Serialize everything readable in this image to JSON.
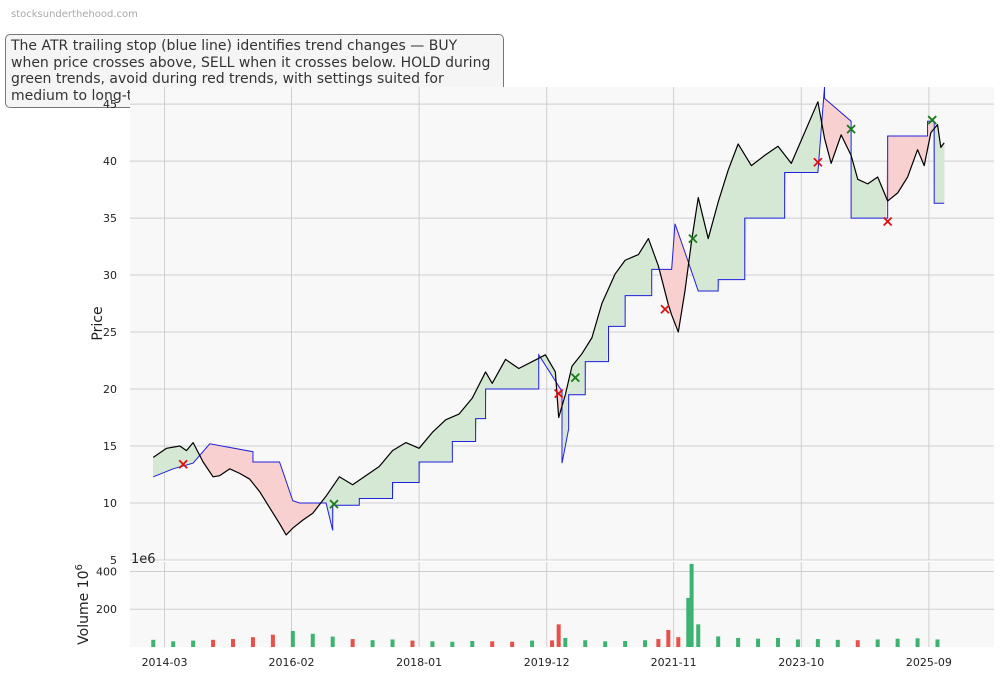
{
  "watermark": "stocksunderthehood.com",
  "note": "The ATR trailing stop (blue line) identifies trend changes — BUY when price crosses above, SELL when it crosses below. HOLD during green trends, avoid during red trends, with settings suited for medium to long-term investors.",
  "colors": {
    "price": "#000000",
    "stop": "#1f1fe0",
    "bull_fill": "#d5e8d4",
    "bear_fill": "#f8d0d0",
    "buy": "#1a7a1a",
    "sell": "#dd1111",
    "vol_up": "#3cb371",
    "vol_down": "#e8504a",
    "panel_bg": "#f8f8f8",
    "grid": "#cfcfcf"
  },
  "chart_data": [
    {
      "type": "line",
      "panel": "price",
      "ylabel": "Price",
      "ylim": [
        5,
        46.5
      ],
      "yticks": [
        5,
        10,
        15,
        20,
        25,
        30,
        35,
        40,
        45
      ],
      "xlim": [
        2013.65,
        2026.65
      ],
      "xticks": [
        {
          "label": "2014-03",
          "x": 2014.17
        },
        {
          "label": "2016-02",
          "x": 2016.08
        },
        {
          "label": "2018-01",
          "x": 2018.0
        },
        {
          "label": "2019-12",
          "x": 2019.92
        },
        {
          "label": "2021-11",
          "x": 2021.83
        },
        {
          "label": "2023-10",
          "x": 2023.75
        },
        {
          "label": "2025-09",
          "x": 2025.67
        }
      ],
      "grid": true,
      "series": [
        {
          "id": "price",
          "x": [
            2014.0,
            2014.2,
            2014.4,
            2014.5,
            2014.6,
            2014.75,
            2014.9,
            2015.0,
            2015.15,
            2015.3,
            2015.45,
            2015.6,
            2015.75,
            2015.9,
            2016.0,
            2016.1,
            2016.25,
            2016.4,
            2016.6,
            2016.8,
            2017.0,
            2017.2,
            2017.4,
            2017.6,
            2017.8,
            2018.0,
            2018.2,
            2018.4,
            2018.6,
            2018.8,
            2019.0,
            2019.1,
            2019.3,
            2019.5,
            2019.7,
            2019.9,
            2020.05,
            2020.1,
            2020.2,
            2020.3,
            2020.45,
            2020.6,
            2020.75,
            2020.95,
            2021.1,
            2021.3,
            2021.45,
            2021.6,
            2021.75,
            2021.8,
            2021.9,
            2022.0,
            2022.1,
            2022.2,
            2022.35,
            2022.5,
            2022.65,
            2022.8,
            2023.0,
            2023.2,
            2023.4,
            2023.6,
            2023.8,
            2024.0,
            2024.1,
            2024.2,
            2024.35,
            2024.5,
            2024.6,
            2024.75,
            2024.9,
            2025.05,
            2025.2,
            2025.35,
            2025.5,
            2025.6,
            2025.7,
            2025.8,
            2025.85,
            2025.9
          ],
          "y": [
            14.0,
            14.8,
            15.0,
            14.6,
            15.3,
            13.6,
            12.3,
            12.4,
            13.0,
            12.6,
            12.1,
            11.0,
            9.6,
            8.2,
            7.2,
            7.8,
            8.5,
            9.1,
            10.6,
            12.3,
            11.6,
            12.4,
            13.2,
            14.6,
            15.3,
            14.8,
            16.2,
            17.3,
            17.8,
            19.2,
            21.5,
            20.5,
            22.6,
            21.8,
            22.4,
            23.0,
            21.5,
            17.5,
            19.5,
            22.0,
            23.1,
            24.5,
            27.5,
            30.1,
            31.3,
            31.8,
            33.2,
            30.8,
            27.4,
            26.5,
            25.0,
            28.6,
            33.0,
            36.8,
            33.2,
            36.4,
            39.2,
            41.5,
            39.6,
            40.5,
            41.3,
            39.8,
            42.5,
            45.2,
            42.0,
            39.8,
            42.3,
            40.5,
            38.4,
            38.0,
            38.6,
            36.5,
            37.2,
            38.6,
            41.0,
            39.6,
            42.5,
            43.2,
            41.2,
            41.6
          ]
        },
        {
          "id": "stop",
          "x": [
            2014.0,
            2014.3,
            2014.3,
            2014.6,
            2014.6,
            2014.85,
            2015.5,
            2015.5,
            2015.65,
            2015.9,
            2016.1,
            2016.2,
            2016.45,
            2016.6,
            2016.7,
            2016.7,
            2017.1,
            2017.1,
            2017.6,
            2017.6,
            2018.0,
            2018.0,
            2018.5,
            2018.5,
            2018.85,
            2018.85,
            2019.0,
            2019.0,
            2019.8,
            2019.8,
            2020.15,
            2020.15,
            2020.25,
            2020.25,
            2020.5,
            2020.5,
            2020.85,
            2020.85,
            2021.1,
            2021.1,
            2021.5,
            2021.5,
            2021.8,
            2021.85,
            2022.0,
            2022.2,
            2022.2,
            2022.5,
            2022.5,
            2022.9,
            2022.9,
            2023.5,
            2023.5,
            2024.0,
            2024.1,
            2024.1,
            2024.5,
            2024.5,
            2025.05,
            2025.05,
            2025.65,
            2025.65,
            2025.75,
            2025.75,
            2025.9
          ],
          "y": [
            12.3,
            13.0,
            13.0,
            13.5,
            13.5,
            15.2,
            14.5,
            13.6,
            13.6,
            13.6,
            10.2,
            10.0,
            10.0,
            10.0,
            7.6,
            9.8,
            9.8,
            10.4,
            10.4,
            11.8,
            11.8,
            13.6,
            13.6,
            15.4,
            15.4,
            17.4,
            17.4,
            20.0,
            20.0,
            23.0,
            19.8,
            13.5,
            16.5,
            19.5,
            19.5,
            22.4,
            22.4,
            25.5,
            25.5,
            28.2,
            28.2,
            30.5,
            30.5,
            34.5,
            32.0,
            28.6,
            28.6,
            28.6,
            29.6,
            29.6,
            35.0,
            35.0,
            39.0,
            39.0,
            46.5,
            45.5,
            43.5,
            35.0,
            35.0,
            42.2,
            42.2,
            43.5,
            43.5,
            36.3,
            36.3
          ]
        }
      ],
      "signals": [
        {
          "type": "sell",
          "x": 2014.45,
          "y": 13.4
        },
        {
          "type": "buy",
          "x": 2016.72,
          "y": 9.9
        },
        {
          "type": "sell",
          "x": 2020.1,
          "y": 19.6
        },
        {
          "type": "buy",
          "x": 2020.35,
          "y": 21.0
        },
        {
          "type": "sell",
          "x": 2021.7,
          "y": 27.0
        },
        {
          "type": "buy",
          "x": 2022.12,
          "y": 33.2
        },
        {
          "type": "sell",
          "x": 2024.0,
          "y": 39.9
        },
        {
          "type": "buy",
          "x": 2024.5,
          "y": 42.8
        },
        {
          "type": "sell",
          "x": 2025.05,
          "y": 34.7
        },
        {
          "type": "buy",
          "x": 2025.72,
          "y": 43.6
        }
      ]
    },
    {
      "type": "bar",
      "panel": "volume",
      "ylabel": "Volume",
      "ylabel_unit": "10",
      "ylabel_unit_exp": "6",
      "offset_label": "1e6",
      "ylim": [
        0,
        450
      ],
      "yticks": [
        200,
        400
      ],
      "grid": true,
      "x": [
        2014.0,
        2014.3,
        2014.6,
        2014.9,
        2015.2,
        2015.5,
        2015.8,
        2016.1,
        2016.4,
        2016.7,
        2017.0,
        2017.3,
        2017.6,
        2017.9,
        2018.2,
        2018.5,
        2018.8,
        2019.1,
        2019.4,
        2019.7,
        2020.0,
        2020.1,
        2020.2,
        2020.5,
        2020.8,
        2021.1,
        2021.4,
        2021.6,
        2021.75,
        2021.9,
        2022.05,
        2022.1,
        2022.2,
        2022.5,
        2022.8,
        2023.1,
        2023.4,
        2023.7,
        2024.0,
        2024.3,
        2024.6,
        2024.9,
        2025.2,
        2025.5,
        2025.8
      ],
      "values": [
        38,
        30,
        34,
        38,
        42,
        52,
        65,
        85,
        70,
        55,
        42,
        36,
        40,
        34,
        30,
        28,
        32,
        30,
        28,
        34,
        35,
        120,
        48,
        36,
        30,
        32,
        36,
        42,
        90,
        52,
        260,
        440,
        120,
        56,
        48,
        44,
        48,
        40,
        42,
        38,
        36,
        40,
        44,
        46,
        40
      ]
    }
  ]
}
